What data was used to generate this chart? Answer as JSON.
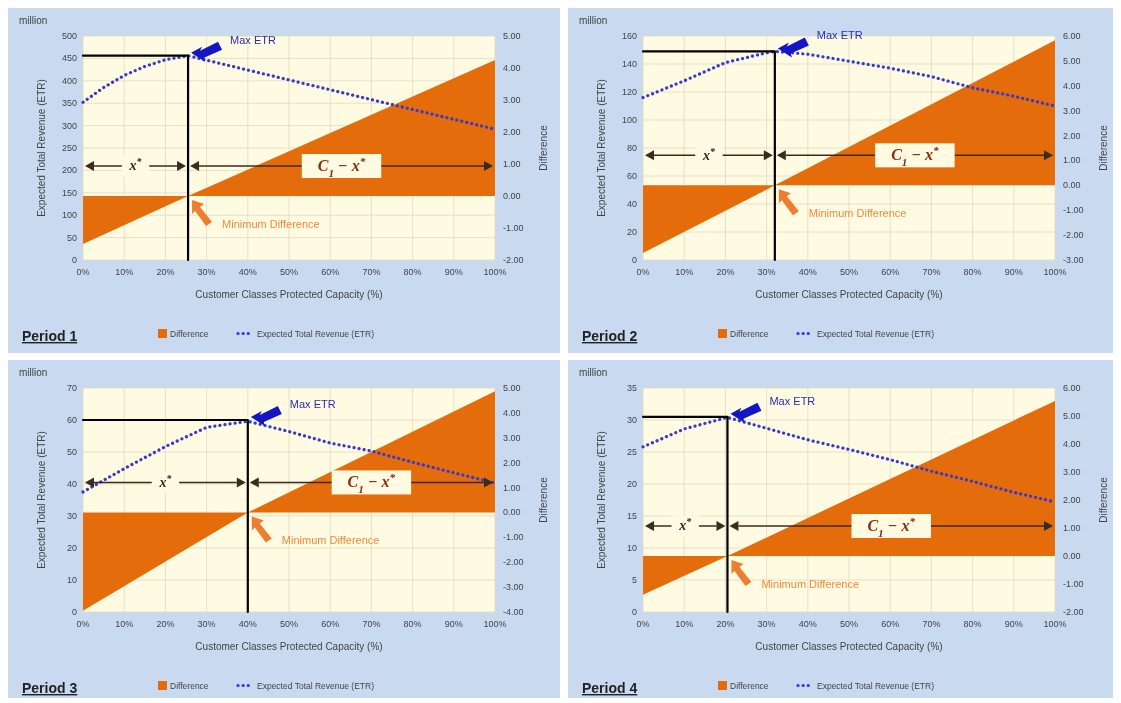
{
  "chart_data": [
    {
      "type": "line",
      "title": "Period 1",
      "xlabel": "Customer  Classes Protected Capacity (%)",
      "ylabel": "Expected Total Revenue (ETR)",
      "y2label": "Difference",
      "grid": true,
      "legend": "bottom",
      "xlim": [
        0,
        100
      ],
      "xticks": [
        {
          "value": 0,
          "label": "0%"
        },
        {
          "value": 10,
          "label": "10%"
        },
        {
          "value": 20,
          "label": "20%"
        },
        {
          "value": 30,
          "label": "30%"
        },
        {
          "value": 40,
          "label": "40%"
        },
        {
          "value": 50,
          "label": "50%"
        },
        {
          "value": 60,
          "label": "60%"
        },
        {
          "value": 70,
          "label": "70%"
        },
        {
          "value": 80,
          "label": "80%"
        },
        {
          "value": 90,
          "label": "90%"
        },
        {
          "value": 100,
          "label": "100%"
        }
      ],
      "ylim": [
        0,
        500
      ],
      "yticks": [
        0,
        50,
        100,
        150,
        200,
        250,
        300,
        350,
        400,
        450,
        500
      ],
      "y2lim": [
        -2,
        5
      ],
      "y2ticks": [
        {
          "value": -2,
          "label": "-2.00"
        },
        {
          "value": -1,
          "label": "-1.00"
        },
        {
          "value": 0,
          "label": "0.00"
        },
        {
          "value": 1,
          "label": "1.00"
        },
        {
          "value": 2,
          "label": "2.00"
        },
        {
          "value": 3,
          "label": "3.00"
        },
        {
          "value": 4,
          "label": "4.00"
        },
        {
          "value": 5,
          "label": "5.00"
        }
      ],
      "series": [
        {
          "name": "Difference",
          "type": "area",
          "axis": "y2",
          "color": "#e46c0a",
          "x": [
            0,
            25.5,
            100
          ],
          "values": [
            -1.5,
            0,
            4.25
          ]
        },
        {
          "name": "Expected Total Revenue (ETR)",
          "line_style": "dotted",
          "color": "#3a3ac8",
          "x": [
            0,
            5,
            10,
            15,
            20,
            25.5,
            30,
            40,
            50,
            60,
            70,
            80,
            90,
            100
          ],
          "values": [
            352,
            385,
            412,
            432,
            447,
            456,
            446,
            424,
            402,
            380,
            358,
            336,
            314,
            292
          ]
        },
        {
          "line_style": "solid",
          "color": "#000000",
          "x": [
            0,
            25.5,
            25.5
          ],
          "values": [
            456,
            456,
            0
          ]
        }
      ],
      "annotations": [
        "million",
        "Max ETR",
        "Minimum Difference",
        "x$^{*}$",
        "C$_{1}$ − x$^{*}$"
      ]
    },
    {
      "type": "line",
      "title": "Period 2",
      "xlabel": "Customer  Classes Protected Capacity (%)",
      "ylabel": "Expected Total Revenue (ETR)",
      "y2label": "Difference",
      "grid": true,
      "legend": "bottom",
      "xlim": [
        0,
        100
      ],
      "xticks": [
        {
          "value": 0,
          "label": "0%"
        },
        {
          "value": 10,
          "label": "10%"
        },
        {
          "value": 20,
          "label": "20%"
        },
        {
          "value": 30,
          "label": "30%"
        },
        {
          "value": 40,
          "label": "40%"
        },
        {
          "value": 50,
          "label": "50%"
        },
        {
          "value": 60,
          "label": "60%"
        },
        {
          "value": 70,
          "label": "70%"
        },
        {
          "value": 80,
          "label": "80%"
        },
        {
          "value": 90,
          "label": "90%"
        },
        {
          "value": 100,
          "label": "100%"
        }
      ],
      "ylim": [
        0,
        160
      ],
      "yticks": [
        0,
        20,
        40,
        60,
        80,
        100,
        120,
        140,
        160
      ],
      "y2lim": [
        -3,
        6
      ],
      "y2ticks": [
        {
          "value": -3,
          "label": "-3.00"
        },
        {
          "value": -2,
          "label": "-2.00"
        },
        {
          "value": -1,
          "label": "-1.00"
        },
        {
          "value": 0,
          "label": "0.00"
        },
        {
          "value": 1,
          "label": "1.00"
        },
        {
          "value": 2,
          "label": "2.00"
        },
        {
          "value": 3,
          "label": "3.00"
        },
        {
          "value": 4,
          "label": "4.00"
        },
        {
          "value": 5,
          "label": "5.00"
        },
        {
          "value": 6,
          "label": "6.00"
        }
      ],
      "series": [
        {
          "name": "Difference",
          "type": "area",
          "axis": "y2",
          "color": "#e46c0a",
          "x": [
            0,
            32,
            100
          ],
          "values": [
            -2.72,
            0,
            5.83
          ]
        },
        {
          "name": "Expected Total Revenue (ETR)",
          "line_style": "dotted",
          "color": "#3a3ac8",
          "x": [
            0,
            10,
            20,
            30,
            32,
            40,
            50,
            60,
            70,
            80,
            90,
            100
          ],
          "values": [
            116,
            128,
            141,
            148,
            149,
            147,
            142,
            137,
            131,
            123,
            117,
            110
          ]
        },
        {
          "line_style": "solid",
          "color": "#000000",
          "x": [
            0,
            32,
            32
          ],
          "values": [
            149,
            149,
            0
          ]
        }
      ],
      "annotations": [
        "million",
        "Max ETR",
        "Minimum Difference",
        "x$^{*}$",
        "C$_{1}$ − x$^{*}$"
      ]
    },
    {
      "type": "line",
      "title": "Period 3",
      "xlabel": "Customer  Classes Protected Capacity (%)",
      "ylabel": "Expected Total Revenue (ETR)",
      "y2label": "Difference",
      "grid": true,
      "legend": "bottom",
      "xlim": [
        0,
        100
      ],
      "xticks": [
        {
          "value": 0,
          "label": "0%"
        },
        {
          "value": 10,
          "label": "10%"
        },
        {
          "value": 20,
          "label": "20%"
        },
        {
          "value": 30,
          "label": "30%"
        },
        {
          "value": 40,
          "label": "40%"
        },
        {
          "value": 50,
          "label": "50%"
        },
        {
          "value": 60,
          "label": "60%"
        },
        {
          "value": 70,
          "label": "70%"
        },
        {
          "value": 80,
          "label": "80%"
        },
        {
          "value": 90,
          "label": "90%"
        },
        {
          "value": 100,
          "label": "100%"
        }
      ],
      "ylim": [
        0,
        70
      ],
      "yticks": [
        0,
        10,
        20,
        30,
        40,
        50,
        60,
        70
      ],
      "y2lim": [
        -4,
        5
      ],
      "y2ticks": [
        {
          "value": -4,
          "label": "-4.00"
        },
        {
          "value": -3,
          "label": "-3.00"
        },
        {
          "value": -2,
          "label": "-2.00"
        },
        {
          "value": -1,
          "label": "-1.00"
        },
        {
          "value": 0,
          "label": "0.00"
        },
        {
          "value": 1,
          "label": "1.00"
        },
        {
          "value": 2,
          "label": "2.00"
        },
        {
          "value": 3,
          "label": "3.00"
        },
        {
          "value": 4,
          "label": "4.00"
        },
        {
          "value": 5,
          "label": "5.00"
        }
      ],
      "series": [
        {
          "name": "Difference",
          "type": "area",
          "axis": "y2",
          "color": "#e46c0a",
          "x": [
            0,
            40,
            100
          ],
          "values": [
            -3.95,
            0,
            4.87
          ]
        },
        {
          "name": "Expected Total Revenue (ETR)",
          "line_style": "dotted",
          "color": "#3a3ac8",
          "x": [
            0,
            10,
            20,
            30,
            40,
            50,
            60,
            70,
            80,
            90,
            100
          ],
          "values": [
            37.5,
            44.8,
            51.7,
            57.7,
            59.6,
            56.4,
            52.8,
            50.3,
            46.8,
            43.5,
            40.3
          ]
        },
        {
          "line_style": "solid",
          "color": "#000000",
          "x": [
            0,
            40,
            40
          ],
          "values": [
            60,
            60,
            0
          ]
        }
      ],
      "annotations": [
        "million",
        "Max ETR",
        "Minimum Difference",
        "x$^{*}$",
        "C$_{1}$ − x$^{*}$"
      ]
    },
    {
      "type": "line",
      "title": "Period 4",
      "xlabel": "Customer  Classes Protected Capacity (%)",
      "ylabel": "Expected Total Revenue (ETR)",
      "y2label": "Difference",
      "grid": true,
      "legend": "bottom",
      "xlim": [
        0,
        100
      ],
      "xticks": [
        {
          "value": 0,
          "label": "0%"
        },
        {
          "value": 10,
          "label": "10%"
        },
        {
          "value": 20,
          "label": "20%"
        },
        {
          "value": 30,
          "label": "30%"
        },
        {
          "value": 40,
          "label": "40%"
        },
        {
          "value": 50,
          "label": "50%"
        },
        {
          "value": 60,
          "label": "60%"
        },
        {
          "value": 70,
          "label": "70%"
        },
        {
          "value": 80,
          "label": "80%"
        },
        {
          "value": 90,
          "label": "90%"
        },
        {
          "value": 100,
          "label": "100%"
        }
      ],
      "ylim": [
        0,
        35
      ],
      "yticks": [
        0,
        5,
        10,
        15,
        20,
        25,
        30,
        35
      ],
      "y2lim": [
        -2,
        6
      ],
      "y2ticks": [
        {
          "value": -2,
          "label": "-2.00"
        },
        {
          "value": -1,
          "label": "-1.00"
        },
        {
          "value": 0,
          "label": "0.00"
        },
        {
          "value": 1,
          "label": "1.00"
        },
        {
          "value": 2,
          "label": "2.00"
        },
        {
          "value": 3,
          "label": "3.00"
        },
        {
          "value": 4,
          "label": "4.00"
        },
        {
          "value": 5,
          "label": "5.00"
        },
        {
          "value": 6,
          "label": "6.00"
        }
      ],
      "series": [
        {
          "name": "Difference",
          "type": "area",
          "axis": "y2",
          "color": "#e46c0a",
          "x": [
            0,
            20.5,
            100
          ],
          "values": [
            -1.38,
            0,
            5.54
          ]
        },
        {
          "name": "Expected Total Revenue (ETR)",
          "line_style": "dotted",
          "color": "#3a3ac8",
          "x": [
            0,
            10,
            20.5,
            30,
            40,
            50,
            60,
            70,
            80,
            90,
            100
          ],
          "values": [
            25.8,
            28.6,
            30.4,
            28.7,
            26.9,
            25.4,
            23.8,
            22,
            20.4,
            18.7,
            17.2
          ]
        },
        {
          "line_style": "solid",
          "color": "#000000",
          "x": [
            0,
            20.5,
            20.5
          ],
          "values": [
            30.5,
            30.5,
            0
          ]
        }
      ],
      "annotations": [
        "million",
        "Max ETR",
        "Minimum Difference",
        "x$^{*}$",
        "C$_{1}$ − x$^{*}$"
      ]
    }
  ]
}
